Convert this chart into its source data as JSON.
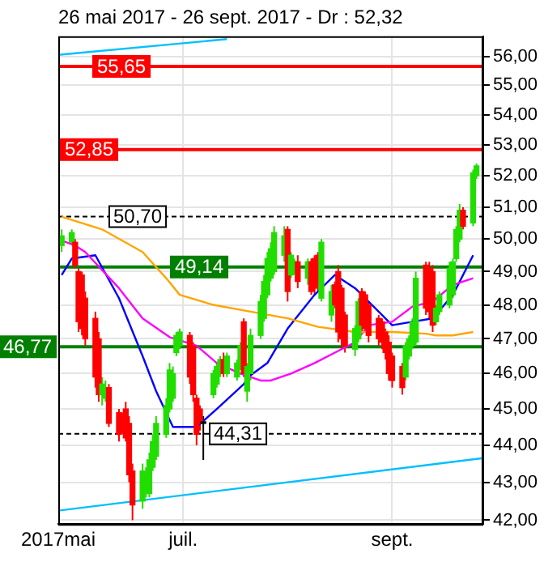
{
  "chart_data": {
    "type": "candlestick",
    "title": "26 mai 2017 - 26 sept. 2017 - Dr : 52,32",
    "log": true,
    "grid": true,
    "xlim": [
      "2017-05-25",
      "2017-09-28"
    ],
    "xticks": [
      {
        "value": "2017-05-25",
        "label": "2017mai"
      },
      {
        "value": "2017-07-01",
        "label": "juil."
      },
      {
        "value": "2017-09-01",
        "label": "sept."
      }
    ],
    "ylim": [
      41.9,
      56.7
    ],
    "yticks": [
      {
        "value": 42,
        "label": "42,00"
      },
      {
        "value": 43,
        "label": "43,00"
      },
      {
        "value": 44,
        "label": "44,00"
      },
      {
        "value": 45,
        "label": "45,00"
      },
      {
        "value": 46,
        "label": "46,00"
      },
      {
        "value": 47,
        "label": "47,00"
      },
      {
        "value": 48,
        "label": "48,00"
      },
      {
        "value": 49,
        "label": "49,00"
      },
      {
        "value": 50,
        "label": "50,00"
      },
      {
        "value": 51,
        "label": "51,00"
      },
      {
        "value": 52,
        "label": "52,00"
      },
      {
        "value": 53,
        "label": "53,00"
      },
      {
        "value": 54,
        "label": "54,00"
      },
      {
        "value": 55,
        "label": "55,00"
      },
      {
        "value": 56,
        "label": "56,00"
      }
    ],
    "ref_lines": [
      {
        "axis": "y",
        "value": 55.65,
        "label": "55,65",
        "color": "#ff0000"
      },
      {
        "axis": "y",
        "value": 52.85,
        "label": "52,85",
        "color": "#ff0000"
      },
      {
        "axis": "y",
        "value": 50.7,
        "label": "50,70",
        "color": "#000000",
        "line_style": "dashed"
      },
      {
        "axis": "y",
        "value": 49.14,
        "label": "49,14",
        "color": "#008000"
      },
      {
        "axis": "y",
        "value": 46.77,
        "label": "46,77",
        "color": "#008000"
      },
      {
        "axis": "y",
        "value": 44.31,
        "label": "44,31",
        "color": "#000000",
        "line_style": "dashed"
      }
    ],
    "series": [
      {
        "type": "candlestick",
        "x": [
          "2017-05-26",
          "2017-05-29",
          "2017-05-30",
          "2017-05-31",
          "2017-06-01",
          "2017-06-02",
          "2017-06-05",
          "2017-06-06",
          "2017-06-07",
          "2017-06-08",
          "2017-06-09",
          "2017-06-12",
          "2017-06-13",
          "2017-06-14",
          "2017-06-15",
          "2017-06-16",
          "2017-06-19",
          "2017-06-20",
          "2017-06-21",
          "2017-06-22",
          "2017-06-23",
          "2017-06-26",
          "2017-06-27",
          "2017-06-28",
          "2017-06-29",
          "2017-06-30",
          "2017-07-03",
          "2017-07-04",
          "2017-07-05",
          "2017-07-06",
          "2017-07-07",
          "2017-07-10",
          "2017-07-11",
          "2017-07-12",
          "2017-07-13",
          "2017-07-14",
          "2017-07-17",
          "2017-07-18",
          "2017-07-19",
          "2017-07-20",
          "2017-07-21",
          "2017-07-24",
          "2017-07-25",
          "2017-07-26",
          "2017-07-27",
          "2017-07-28",
          "2017-07-31",
          "2017-08-01",
          "2017-08-02",
          "2017-08-03",
          "2017-08-04",
          "2017-08-07",
          "2017-08-08",
          "2017-08-09",
          "2017-08-10",
          "2017-08-11",
          "2017-08-14",
          "2017-08-15",
          "2017-08-16",
          "2017-08-17",
          "2017-08-18",
          "2017-08-21",
          "2017-08-22",
          "2017-08-23",
          "2017-08-24",
          "2017-08-25",
          "2017-08-28",
          "2017-08-29",
          "2017-08-30",
          "2017-08-31",
          "2017-09-01",
          "2017-09-04",
          "2017-09-05",
          "2017-09-06",
          "2017-09-07",
          "2017-09-08",
          "2017-09-11",
          "2017-09-12",
          "2017-09-13",
          "2017-09-14",
          "2017-09-15",
          "2017-09-18",
          "2017-09-19",
          "2017-09-20",
          "2017-09-21",
          "2017-09-22",
          "2017-09-25",
          "2017-09-26"
        ],
        "ohlc": [
          [
            49.8,
            50.3,
            49.6,
            50.1
          ],
          [
            49.9,
            50.3,
            49.8,
            50.2
          ],
          [
            49.9,
            50.0,
            49.1,
            49.2
          ],
          [
            49.0,
            49.1,
            47.2,
            47.5
          ],
          [
            48.9,
            49.0,
            47.1,
            47.3
          ],
          [
            48.2,
            48.4,
            46.8,
            47.0
          ],
          [
            47.6,
            47.8,
            45.6,
            45.9
          ],
          [
            47.0,
            47.2,
            45.2,
            45.4
          ],
          [
            45.4,
            45.9,
            45.1,
            45.7
          ],
          [
            45.3,
            45.8,
            45.2,
            45.6
          ],
          [
            45.6,
            45.7,
            44.5,
            44.6
          ],
          [
            44.9,
            45.0,
            44.1,
            44.3
          ],
          [
            44.8,
            44.9,
            44.3,
            44.4
          ],
          [
            45.0,
            45.2,
            44.1,
            44.2
          ],
          [
            44.6,
            44.8,
            43.0,
            43.2
          ],
          [
            43.3,
            43.5,
            42.0,
            42.4
          ],
          [
            42.5,
            43.5,
            42.3,
            43.3
          ],
          [
            42.8,
            43.4,
            42.6,
            43.2
          ],
          [
            42.7,
            43.8,
            42.6,
            43.6
          ],
          [
            43.4,
            44.3,
            43.3,
            44.1
          ],
          [
            43.7,
            44.8,
            43.6,
            44.6
          ],
          [
            44.3,
            45.3,
            44.2,
            45.1
          ],
          [
            45.0,
            46.3,
            44.9,
            46.1
          ],
          [
            45.3,
            46.2,
            45.2,
            46.0
          ],
          [
            46.6,
            47.2,
            46.5,
            47.1
          ],
          [
            46.8,
            47.3,
            46.7,
            47.2
          ],
          [
            47.1,
            47.2,
            45.7,
            45.9
          ],
          [
            46.8,
            46.9,
            45.2,
            45.4
          ],
          [
            45.3,
            45.4,
            44.0,
            44.3
          ],
          [
            45.0,
            45.1,
            44.4,
            44.6
          ],
          [
            44.6,
            44.8,
            43.6,
            44.6
          ],
          [
            45.4,
            46.1,
            45.3,
            46.0
          ],
          [
            45.7,
            46.3,
            45.6,
            46.2
          ],
          [
            46.0,
            46.5,
            45.9,
            46.4
          ],
          [
            46.4,
            46.6,
            45.9,
            46.0
          ],
          [
            46.0,
            46.6,
            45.9,
            46.5
          ],
          [
            45.9,
            46.4,
            45.8,
            46.3
          ],
          [
            46.2,
            46.9,
            46.1,
            46.8
          ],
          [
            47.5,
            47.6,
            45.9,
            46.0
          ],
          [
            45.5,
            46.3,
            45.2,
            46.2
          ],
          [
            46.0,
            47.3,
            45.8,
            47.1
          ],
          [
            47.1,
            48.3,
            47.0,
            48.1
          ],
          [
            47.6,
            48.9,
            47.5,
            48.7
          ],
          [
            48.3,
            49.6,
            48.2,
            49.4
          ],
          [
            48.8,
            49.9,
            48.7,
            49.7
          ],
          [
            49.0,
            50.4,
            48.9,
            50.2
          ],
          [
            49.5,
            50.4,
            49.3,
            50.1
          ],
          [
            50.3,
            50.4,
            48.1,
            48.4
          ],
          [
            48.9,
            49.6,
            48.8,
            49.5
          ],
          [
            49.0,
            49.4,
            48.9,
            49.3
          ],
          [
            49.3,
            49.5,
            48.5,
            48.7
          ],
          [
            48.8,
            49.4,
            48.6,
            49.3
          ],
          [
            49.3,
            49.4,
            48.3,
            48.4
          ],
          [
            49.4,
            49.5,
            48.3,
            48.5
          ],
          [
            49.5,
            49.6,
            48.4,
            48.6
          ],
          [
            48.2,
            50.0,
            48.1,
            49.9
          ],
          [
            47.7,
            48.6,
            47.5,
            48.4
          ],
          [
            48.6,
            48.7,
            47.9,
            48.0
          ],
          [
            49.0,
            49.2,
            46.9,
            47.2
          ],
          [
            48.5,
            48.6,
            46.7,
            47.0
          ],
          [
            47.7,
            47.8,
            46.6,
            46.8
          ],
          [
            46.7,
            47.4,
            46.5,
            47.3
          ],
          [
            47.0,
            48.2,
            46.9,
            48.1
          ],
          [
            48.4,
            48.5,
            47.2,
            47.4
          ],
          [
            48.3,
            48.4,
            47.2,
            47.3
          ],
          [
            48.0,
            48.1,
            46.9,
            47.1
          ],
          [
            47.6,
            47.7,
            46.8,
            47.0
          ],
          [
            47.5,
            47.6,
            46.7,
            46.9
          ],
          [
            47.2,
            47.3,
            46.4,
            46.6
          ],
          [
            46.9,
            47.1,
            45.8,
            46.0
          ],
          [
            46.5,
            46.6,
            45.6,
            45.8
          ],
          [
            46.2,
            46.3,
            45.4,
            45.6
          ],
          [
            45.9,
            46.9,
            45.8,
            46.8
          ],
          [
            46.5,
            47.1,
            46.4,
            47.0
          ],
          [
            46.8,
            47.6,
            46.7,
            47.5
          ],
          [
            46.9,
            49.0,
            46.8,
            48.8
          ],
          [
            49.2,
            49.3,
            47.7,
            47.9
          ],
          [
            49.1,
            49.3,
            47.6,
            47.8
          ],
          [
            49.0,
            49.2,
            47.2,
            47.4
          ],
          [
            47.5,
            48.0,
            47.4,
            47.9
          ],
          [
            47.8,
            48.4,
            47.7,
            48.3
          ],
          [
            48.0,
            49.3,
            47.9,
            49.1
          ],
          [
            48.3,
            49.4,
            48.2,
            49.3
          ],
          [
            49.4,
            50.4,
            49.3,
            50.3
          ],
          [
            50.0,
            51.1,
            49.9,
            50.9
          ],
          [
            50.9,
            51.0,
            50.3,
            50.4
          ],
          [
            50.5,
            52.2,
            50.4,
            52.1
          ],
          [
            52.0,
            52.4,
            51.9,
            52.32
          ]
        ]
      },
      {
        "type": "line",
        "color": "#ffa500",
        "x": [
          "2017-05-26",
          "2017-06-07",
          "2017-06-19",
          "2017-06-26",
          "2017-06-30",
          "2017-07-10",
          "2017-07-21",
          "2017-08-01",
          "2017-08-10",
          "2017-08-21",
          "2017-09-01",
          "2017-09-11",
          "2017-09-14",
          "2017-09-19",
          "2017-09-25"
        ],
        "values": [
          50.7,
          50.3,
          49.6,
          48.8,
          48.3,
          48.0,
          47.8,
          47.6,
          47.35,
          47.2,
          47.2,
          47.15,
          47.1,
          47.1,
          47.2
        ]
      },
      {
        "type": "line",
        "color": "#ff00ff",
        "x": [
          "2017-05-26",
          "2017-05-30",
          "2017-06-02",
          "2017-06-12",
          "2017-06-19",
          "2017-06-27",
          "2017-07-05",
          "2017-07-11",
          "2017-07-18",
          "2017-07-24",
          "2017-07-27",
          "2017-08-02",
          "2017-08-09",
          "2017-08-15",
          "2017-08-21",
          "2017-08-25",
          "2017-09-01",
          "2017-09-07",
          "2017-09-13",
          "2017-09-19",
          "2017-09-25"
        ],
        "values": [
          49.95,
          49.8,
          49.6,
          48.5,
          47.6,
          47.05,
          46.8,
          46.3,
          46.0,
          45.8,
          45.8,
          46.0,
          46.3,
          46.6,
          46.9,
          47.4,
          47.5,
          47.95,
          48.1,
          48.6,
          48.8
        ]
      },
      {
        "type": "line",
        "color": "#0000ff",
        "x": [
          "2017-05-26",
          "2017-05-29",
          "2017-06-05",
          "2017-06-12",
          "2017-06-19",
          "2017-06-23",
          "2017-06-28",
          "2017-07-05",
          "2017-07-11",
          "2017-07-19",
          "2017-07-21",
          "2017-07-26",
          "2017-08-01",
          "2017-08-09",
          "2017-08-15",
          "2017-08-21",
          "2017-08-28",
          "2017-09-01",
          "2017-09-07",
          "2017-09-13",
          "2017-09-19",
          "2017-09-25"
        ],
        "values": [
          48.9,
          49.4,
          49.5,
          48.2,
          46.5,
          45.5,
          44.5,
          44.5,
          45.0,
          45.7,
          45.95,
          46.3,
          47.3,
          48.3,
          48.9,
          48.5,
          47.8,
          47.4,
          47.5,
          47.6,
          48.3,
          49.5
        ]
      },
      {
        "type": "line",
        "color": "#00bfff",
        "x": [
          "2017-05-25",
          "2017-07-14"
        ],
        "values": [
          56.05,
          56.6
        ]
      },
      {
        "type": "line",
        "color": "#00bfff",
        "x": [
          "2017-05-25",
          "2017-09-28"
        ],
        "values": [
          42.25,
          43.65
        ]
      }
    ]
  }
}
